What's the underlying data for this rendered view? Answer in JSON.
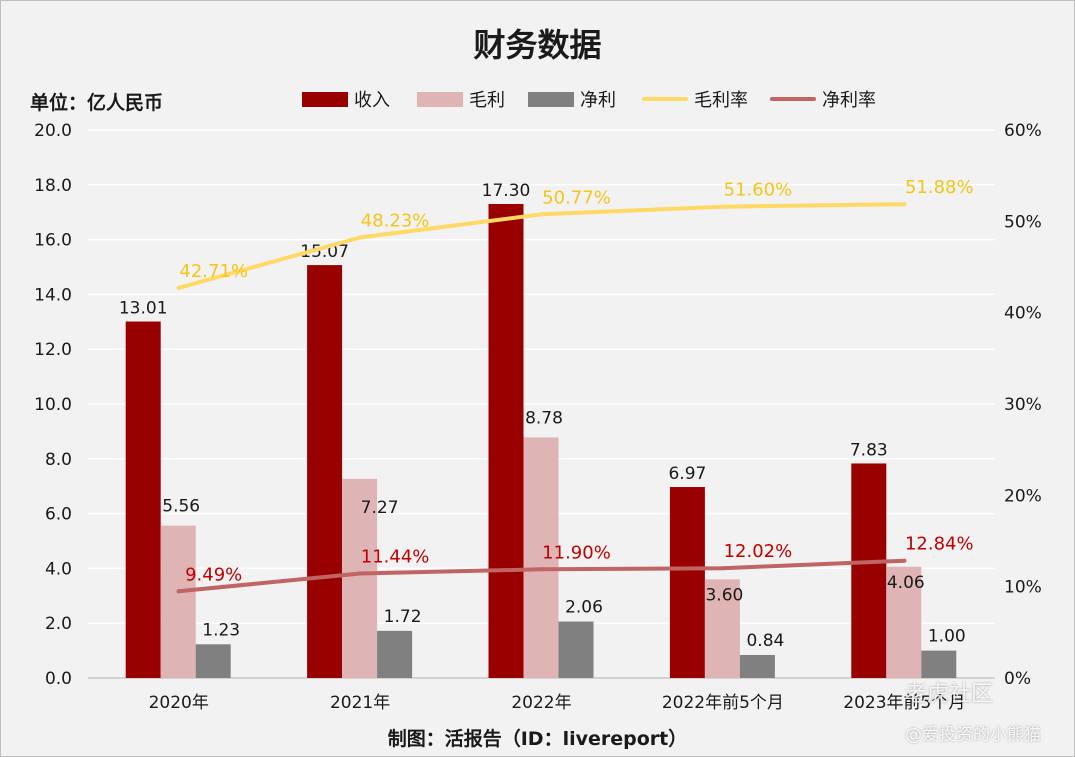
{
  "chart_data": {
    "type": "bar",
    "title": "财务数据",
    "unit_label": "单位：亿人民币",
    "footer": "制图：活报告（ID：livereport）",
    "categories": [
      "2020年",
      "2021年",
      "2022年",
      "2022年前5个月",
      "2023年前5个月"
    ],
    "series": [
      {
        "name": "收入",
        "kind": "bar",
        "axis": "left",
        "color": "#990000",
        "values": [
          13.01,
          15.07,
          17.3,
          6.97,
          7.83
        ],
        "labels": [
          "13.01",
          "15.07",
          "17.30",
          "6.97",
          "7.83"
        ]
      },
      {
        "name": "毛利",
        "kind": "bar",
        "axis": "left",
        "color": "#dfb4b4",
        "values": [
          5.56,
          7.27,
          8.78,
          3.6,
          4.06
        ],
        "labels": [
          "5.56",
          "7.27",
          "8.78",
          "3.60",
          "4.06"
        ]
      },
      {
        "name": "净利",
        "kind": "bar",
        "axis": "left",
        "color": "#808080",
        "values": [
          1.23,
          1.72,
          2.06,
          0.84,
          1.0
        ],
        "labels": [
          "1.23",
          "1.72",
          "2.06",
          "0.84",
          "1.00"
        ]
      },
      {
        "name": "毛利率",
        "kind": "line",
        "axis": "right",
        "color": "#ffd966",
        "label_color": "#f5c518",
        "values": [
          42.71,
          48.23,
          50.77,
          51.6,
          51.88
        ],
        "labels": [
          "42.71%",
          "48.23%",
          "50.77%",
          "51.60%",
          "51.88%"
        ]
      },
      {
        "name": "净利率",
        "kind": "line",
        "axis": "right",
        "color": "#c06464",
        "label_color": "#c00000",
        "values": [
          9.49,
          11.44,
          11.9,
          12.02,
          12.84
        ],
        "labels": [
          "9.49%",
          "11.44%",
          "11.90%",
          "12.02%",
          "12.84%"
        ]
      }
    ],
    "left_axis": {
      "min": 0,
      "max": 20,
      "ticks": [
        "0.0",
        "2.0",
        "4.0",
        "6.0",
        "8.0",
        "10.0",
        "12.0",
        "14.0",
        "16.0",
        "18.0",
        "20.0"
      ]
    },
    "right_axis": {
      "min": 0,
      "max": 60,
      "ticks": [
        "0%",
        "10%",
        "20%",
        "30%",
        "40%",
        "50%",
        "60%"
      ]
    },
    "grid": true,
    "legend_position": "top"
  },
  "watermark": {
    "line1": "老虎社区",
    "line2": "@爱投资的小熊猫"
  }
}
